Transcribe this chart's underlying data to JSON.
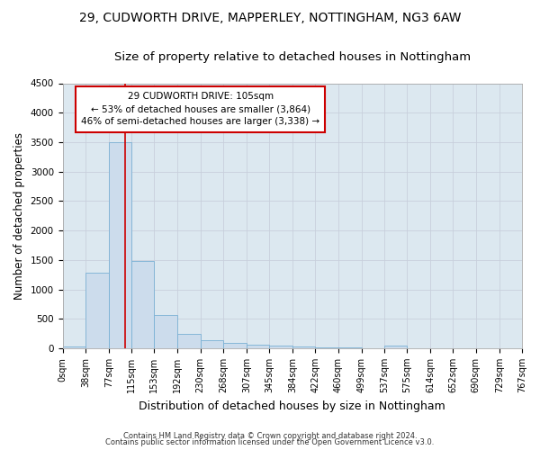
{
  "title": "29, CUDWORTH DRIVE, MAPPERLEY, NOTTINGHAM, NG3 6AW",
  "subtitle": "Size of property relative to detached houses in Nottingham",
  "xlabel": "Distribution of detached houses by size in Nottingham",
  "ylabel": "Number of detached properties",
  "bar_color": "#ccdcec",
  "bar_edge_color": "#7ab0d4",
  "bin_edges": [
    0,
    38,
    77,
    115,
    153,
    192,
    230,
    268,
    307,
    345,
    384,
    422,
    460,
    499,
    537,
    575,
    614,
    652,
    690,
    729,
    767
  ],
  "bar_heights": [
    30,
    1280,
    3500,
    1480,
    570,
    240,
    130,
    90,
    60,
    50,
    30,
    20,
    15,
    0,
    50,
    0,
    0,
    0,
    0,
    0
  ],
  "property_size": 105,
  "property_line_color": "#cc0000",
  "annotation_line1": "29 CUDWORTH DRIVE: 105sqm",
  "annotation_line2": "← 53% of detached houses are smaller (3,864)",
  "annotation_line3": "46% of semi-detached houses are larger (3,338) →",
  "annotation_box_color": "#ffffff",
  "annotation_border_color": "#cc0000",
  "ylim": [
    0,
    4500
  ],
  "yticks": [
    0,
    500,
    1000,
    1500,
    2000,
    2500,
    3000,
    3500,
    4000,
    4500
  ],
  "grid_color": "#c8d0dc",
  "bg_color": "#dce8f0",
  "footer_line1": "Contains HM Land Registry data © Crown copyright and database right 2024.",
  "footer_line2": "Contains public sector information licensed under the Open Government Licence v3.0.",
  "title_fontsize": 10,
  "subtitle_fontsize": 9.5,
  "xlabel_fontsize": 9,
  "ylabel_fontsize": 8.5,
  "tick_fontsize": 7,
  "annotation_fontsize": 7.5,
  "footer_fontsize": 6
}
